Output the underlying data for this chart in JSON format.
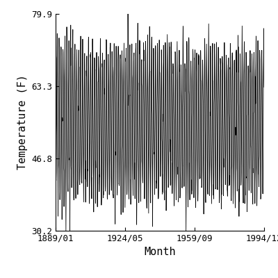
{
  "title": "",
  "xlabel": "Month",
  "ylabel": "Temperature (F)",
  "start_year": 1889,
  "start_month": 1,
  "end_year": 1994,
  "end_month": 12,
  "ylim": [
    30.2,
    79.9
  ],
  "yticks": [
    30.2,
    46.8,
    63.3,
    79.9
  ],
  "xtick_labels": [
    "1889/01",
    "1924/05",
    "1959/09",
    "1994/12"
  ],
  "xtick_years": [
    1889,
    1924,
    1959,
    1994
  ],
  "xtick_months": [
    1,
    5,
    9,
    12
  ],
  "mean_temp": 55.0,
  "amplitude": 16.5,
  "noise_std": 2.8,
  "line_color": "#000000",
  "line_width": 0.6,
  "bg_color": "#ffffff",
  "figsize": [
    4.0,
    4.0
  ],
  "dpi": 100
}
